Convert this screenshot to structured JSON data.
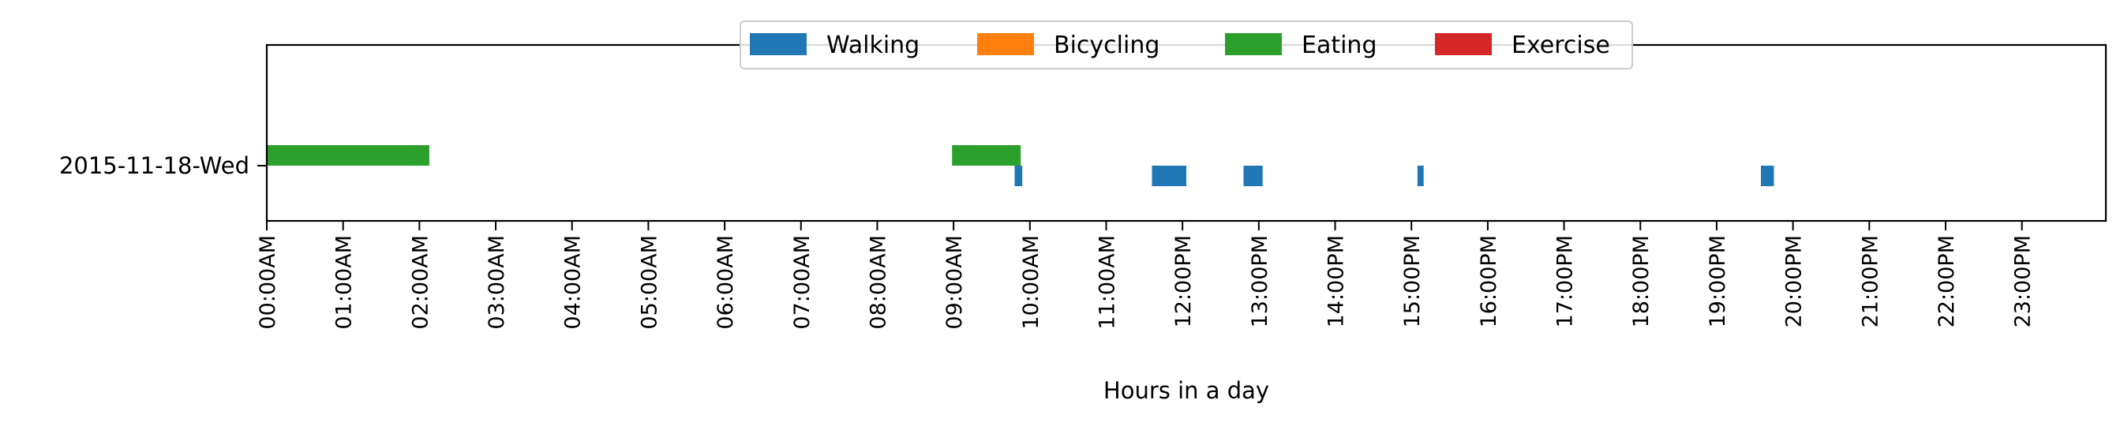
{
  "chart_data": {
    "type": "timeline",
    "title": "",
    "xlabel": "Hours in a day",
    "ylabel": "",
    "xlim": [
      0,
      24.1
    ],
    "categories": [
      "2015-11-18-Wed"
    ],
    "x_ticks": [
      {
        "value": 0,
        "label": "00:00AM"
      },
      {
        "value": 1,
        "label": "01:00AM"
      },
      {
        "value": 2,
        "label": "02:00AM"
      },
      {
        "value": 3,
        "label": "03:00AM"
      },
      {
        "value": 4,
        "label": "04:00AM"
      },
      {
        "value": 5,
        "label": "05:00AM"
      },
      {
        "value": 6,
        "label": "06:00AM"
      },
      {
        "value": 7,
        "label": "07:00AM"
      },
      {
        "value": 8,
        "label": "08:00AM"
      },
      {
        "value": 9,
        "label": "09:00AM"
      },
      {
        "value": 10,
        "label": "10:00AM"
      },
      {
        "value": 11,
        "label": "11:00AM"
      },
      {
        "value": 12,
        "label": "12:00PM"
      },
      {
        "value": 13,
        "label": "13:00PM"
      },
      {
        "value": 14,
        "label": "14:00PM"
      },
      {
        "value": 15,
        "label": "15:00PM"
      },
      {
        "value": 16,
        "label": "16:00PM"
      },
      {
        "value": 17,
        "label": "17:00PM"
      },
      {
        "value": 18,
        "label": "18:00PM"
      },
      {
        "value": 19,
        "label": "19:00PM"
      },
      {
        "value": 20,
        "label": "20:00PM"
      },
      {
        "value": 21,
        "label": "21:00PM"
      },
      {
        "value": 22,
        "label": "22:00PM"
      },
      {
        "value": 23,
        "label": "23:00PM"
      }
    ],
    "legend_position": "top-center",
    "grid": false,
    "series": [
      {
        "name": "Walking",
        "color": "#1f77b4",
        "segments": [
          {
            "start": 9.8,
            "end": 9.9
          },
          {
            "start": 11.6,
            "end": 12.05
          },
          {
            "start": 12.8,
            "end": 13.05
          },
          {
            "start": 15.08,
            "end": 15.16
          },
          {
            "start": 19.58,
            "end": 19.75
          }
        ]
      },
      {
        "name": "Bicycling",
        "color": "#ff7f0e",
        "segments": []
      },
      {
        "name": "Eating",
        "color": "#2ca02c",
        "segments": [
          {
            "start": 0.0,
            "end": 2.13
          },
          {
            "start": 8.98,
            "end": 9.88
          }
        ]
      },
      {
        "name": "Exercise",
        "color": "#d62728",
        "segments": []
      }
    ]
  }
}
